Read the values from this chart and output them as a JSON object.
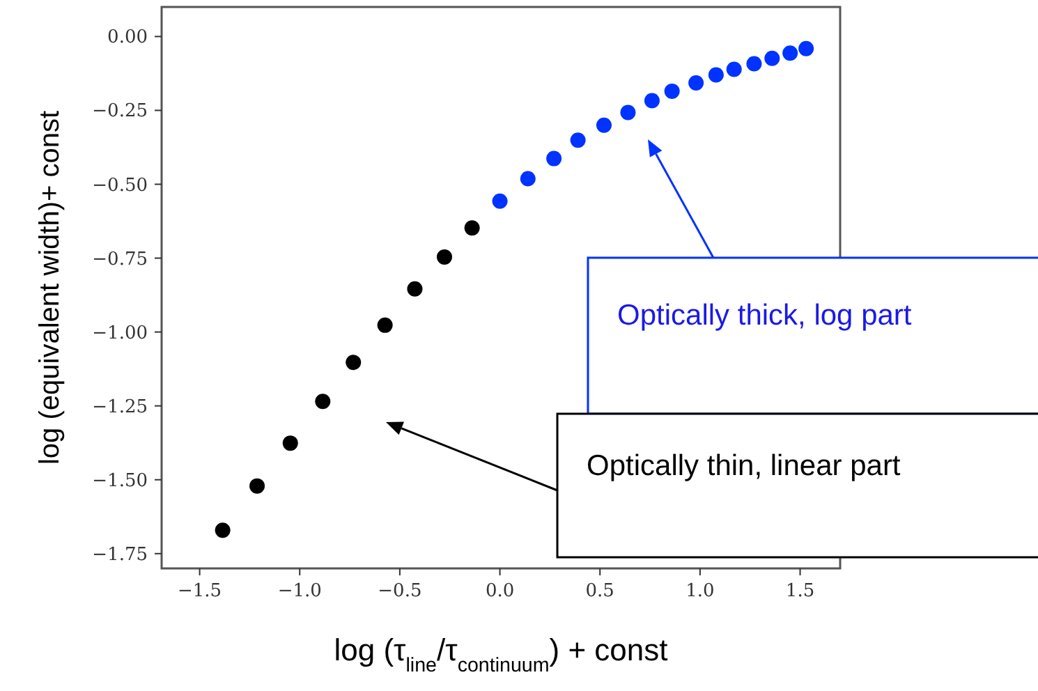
{
  "chart_data": {
    "type": "scatter",
    "xlabel": "log (τ$_{line}$/τ$_{continuum}$) + const",
    "ylabel": "log (equivalent width)+ const",
    "xlim": [
      -1.69,
      1.7
    ],
    "ylim": [
      -1.8,
      0.1
    ],
    "xticks": [
      {
        "value": -1.5,
        "label": "−1.5"
      },
      {
        "value": -1,
        "label": "−1.0"
      },
      {
        "value": -0.5,
        "label": "−0.5"
      },
      {
        "value": 0,
        "label": "0.0"
      },
      {
        "value": 0.5,
        "label": "0.5"
      },
      {
        "value": 1,
        "label": "1.0"
      },
      {
        "value": 1.5,
        "label": "1.5"
      }
    ],
    "yticks": [
      {
        "value": 0,
        "label": "0.00"
      },
      {
        "value": -0.25,
        "label": "−0.25"
      },
      {
        "value": -0.5,
        "label": "−0.50"
      },
      {
        "value": -0.75,
        "label": "−0.75"
      },
      {
        "value": -1,
        "label": "−1.00"
      },
      {
        "value": -1.25,
        "label": "−1.25"
      },
      {
        "value": -1.5,
        "label": "−1.50"
      },
      {
        "value": -1.75,
        "label": "−1.75"
      }
    ],
    "grid": false,
    "marker": "circle",
    "series": [
      {
        "color": "#000000",
        "x": [
          -1.385,
          -1.213,
          -1.047,
          -0.885,
          -0.732,
          -0.574,
          -0.425,
          -0.277,
          -0.139
        ],
        "values": [
          -1.671,
          -1.521,
          -1.376,
          -1.235,
          -1.103,
          -0.977,
          -0.854,
          -0.746,
          -0.648
        ]
      },
      {
        "color": "#0033ff",
        "x": [
          0.0,
          0.14,
          0.27,
          0.39,
          0.52,
          0.64,
          0.76,
          0.86,
          0.98,
          1.08,
          1.17,
          1.27,
          1.36,
          1.45,
          1.53
        ],
        "values": [
          -0.557,
          -0.481,
          -0.413,
          -0.351,
          -0.3,
          -0.257,
          -0.217,
          -0.185,
          -0.157,
          -0.13,
          -0.111,
          -0.092,
          -0.074,
          -0.056,
          -0.041
        ]
      }
    ],
    "annotations": [
      "Optically thick, log part",
      "Optically thin, linear part"
    ]
  }
}
